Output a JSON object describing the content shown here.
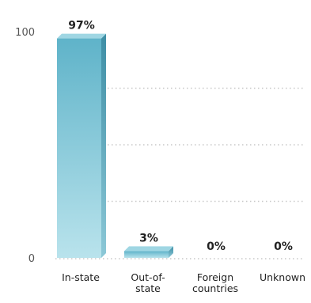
{
  "chart_data": {
    "type": "bar",
    "categories": [
      [
        "In-state"
      ],
      [
        "Out-of-",
        "state"
      ],
      [
        "Foreign",
        "countries"
      ],
      [
        "Unknown"
      ]
    ],
    "values": [
      97,
      3,
      0,
      0
    ],
    "value_labels": [
      "97%",
      "3%",
      "0%",
      "0%"
    ],
    "yticks": [
      "100",
      "0"
    ],
    "ylim": [
      0,
      100
    ],
    "grid": true,
    "bar_color": "#6cc0d4"
  }
}
